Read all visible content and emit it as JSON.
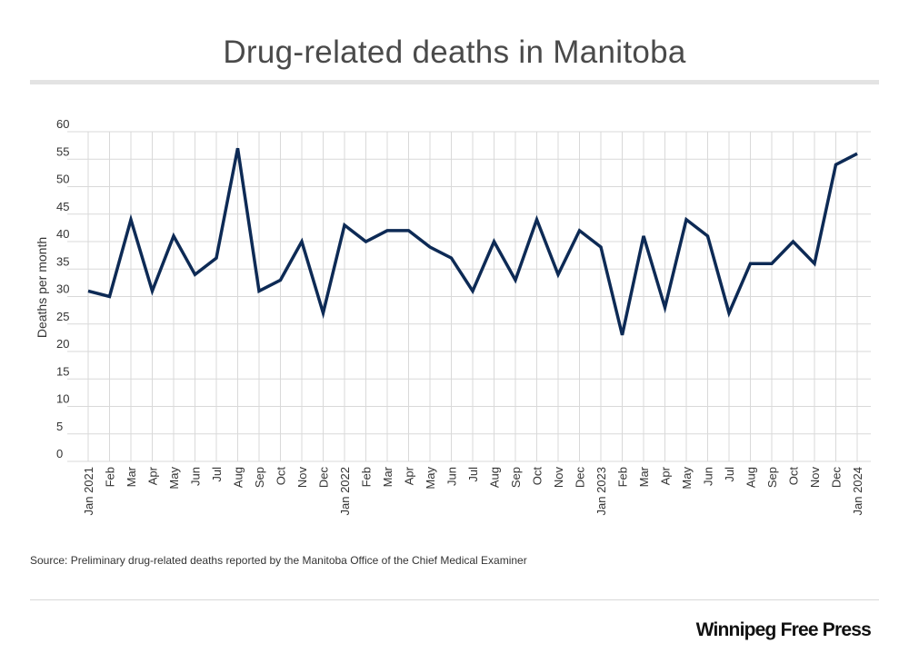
{
  "title": "Drug-related deaths in Manitoba",
  "source": "Source: Preliminary drug-related deaths reported by the Manitoba Office of the Chief Medical Examiner",
  "brand": "Winnipeg Free Press",
  "colors": {
    "line": "#0d2a55",
    "grid": "#d9d9d9",
    "text": "#333333"
  },
  "chart_data": {
    "type": "line",
    "title": "Drug-related deaths in Manitoba",
    "xlabel": "",
    "ylabel": "Deaths per month",
    "ylim": [
      0,
      60
    ],
    "yticks": [
      0,
      5,
      10,
      15,
      20,
      25,
      30,
      35,
      40,
      45,
      50,
      55,
      60
    ],
    "grid": true,
    "categories": [
      "Jan 2021",
      "Feb",
      "Mar",
      "Apr",
      "May",
      "Jun",
      "Jul",
      "Aug",
      "Sep",
      "Oct",
      "Nov",
      "Dec",
      "Jan 2022",
      "Feb",
      "Mar",
      "Apr",
      "May",
      "Jun",
      "Jul",
      "Aug",
      "Sep",
      "Oct",
      "Nov",
      "Dec",
      "Jan 2023",
      "Feb",
      "Mar",
      "Apr",
      "May",
      "Jun",
      "Jul",
      "Aug",
      "Sep",
      "Oct",
      "Nov",
      "Dec",
      "Jan 2024"
    ],
    "series": [
      {
        "name": "Deaths per month",
        "values": [
          31,
          30,
          44,
          31,
          41,
          34,
          37,
          57,
          31,
          33,
          40,
          27,
          43,
          40,
          42,
          42,
          39,
          37,
          31,
          40,
          33,
          44,
          34,
          42,
          39,
          23,
          41,
          28,
          44,
          41,
          27,
          36,
          36,
          40,
          36,
          54,
          56
        ]
      }
    ]
  }
}
